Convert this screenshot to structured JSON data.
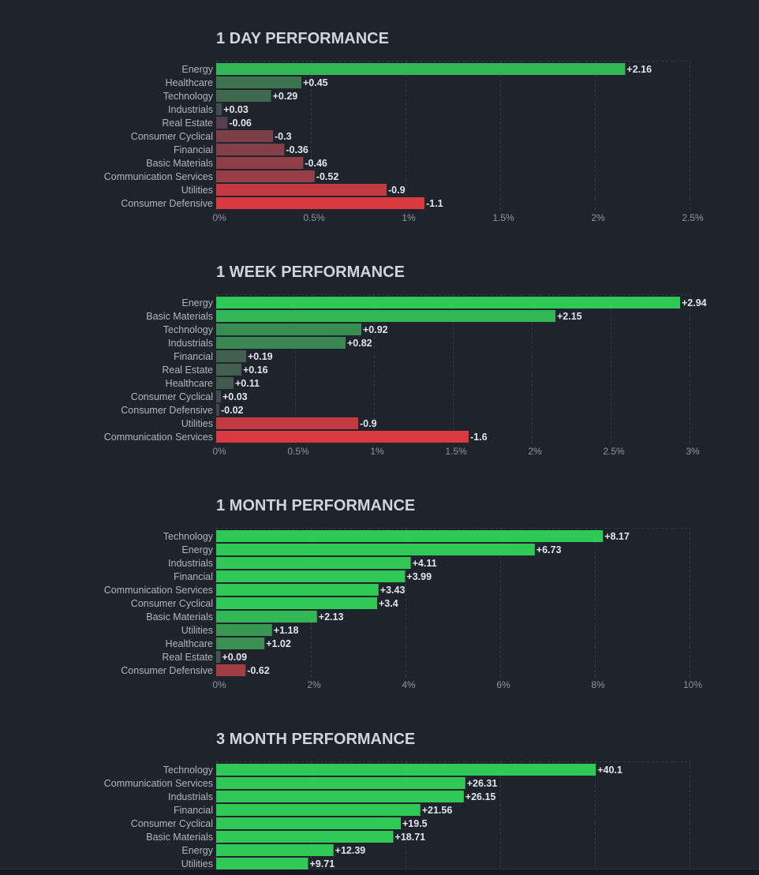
{
  "chart_data": [
    {
      "type": "bar",
      "title": "1 DAY PERFORMANCE",
      "categories": [
        "Energy",
        "Healthcare",
        "Technology",
        "Industrials",
        "Real Estate",
        "Consumer Cyclical",
        "Financial",
        "Basic Materials",
        "Communication Services",
        "Utilities",
        "Consumer Defensive"
      ],
      "values": [
        2.16,
        0.45,
        0.29,
        0.03,
        -0.06,
        -0.3,
        -0.36,
        -0.46,
        -0.52,
        -0.9,
        -1.1
      ],
      "value_labels": [
        "+2.16",
        "+0.45",
        "+0.29",
        "+0.03",
        "-0.06",
        "-0.3",
        "-0.36",
        "-0.46",
        "-0.52",
        "-0.9",
        "-1.1"
      ],
      "xlim": [
        0,
        2.5
      ],
      "xticks": [
        0,
        0.5,
        1,
        1.5,
        2,
        2.5
      ],
      "xtick_labels": [
        "0%",
        "0.5%",
        "1%",
        "1.5%",
        "2%",
        "2.5%"
      ],
      "bar_length": "absolute value",
      "grid": true
    },
    {
      "type": "bar",
      "title": "1 WEEK PERFORMANCE",
      "categories": [
        "Energy",
        "Basic Materials",
        "Technology",
        "Industrials",
        "Financial",
        "Real Estate",
        "Healthcare",
        "Consumer Cyclical",
        "Consumer Defensive",
        "Utilities",
        "Communication Services"
      ],
      "values": [
        2.94,
        2.15,
        0.92,
        0.82,
        0.19,
        0.16,
        0.11,
        0.03,
        -0.02,
        -0.9,
        -1.6
      ],
      "value_labels": [
        "+2.94",
        "+2.15",
        "+0.92",
        "+0.82",
        "+0.19",
        "+0.16",
        "+0.11",
        "+0.03",
        "-0.02",
        "-0.9",
        "-1.6"
      ],
      "xlim": [
        0,
        3
      ],
      "xticks": [
        0,
        0.5,
        1,
        1.5,
        2,
        2.5,
        3
      ],
      "xtick_labels": [
        "0%",
        "0.5%",
        "1%",
        "1.5%",
        "2%",
        "2.5%",
        "3%"
      ],
      "bar_length": "absolute value",
      "grid": true
    },
    {
      "type": "bar",
      "title": "1 MONTH PERFORMANCE",
      "categories": [
        "Technology",
        "Energy",
        "Industrials",
        "Financial",
        "Communication Services",
        "Consumer Cyclical",
        "Basic Materials",
        "Utilities",
        "Healthcare",
        "Real Estate",
        "Consumer Defensive"
      ],
      "values": [
        8.17,
        6.73,
        4.11,
        3.99,
        3.43,
        3.4,
        2.13,
        1.18,
        1.02,
        0.09,
        -0.62
      ],
      "value_labels": [
        "+8.17",
        "+6.73",
        "+4.11",
        "+3.99",
        "+3.43",
        "+3.4",
        "+2.13",
        "+1.18",
        "+1.02",
        "+0.09",
        "-0.62"
      ],
      "xlim": [
        0,
        10
      ],
      "xticks": [
        0,
        2,
        4,
        6,
        8,
        10
      ],
      "xtick_labels": [
        "0%",
        "2%",
        "4%",
        "6%",
        "8%",
        "10%"
      ],
      "bar_length": "absolute value",
      "grid": true
    },
    {
      "type": "bar",
      "title": "3 MONTH PERFORMANCE",
      "categories": [
        "Technology",
        "Communication Services",
        "Industrials",
        "Financial",
        "Consumer Cyclical",
        "Basic Materials",
        "Energy",
        "Utilities"
      ],
      "values": [
        40.1,
        26.31,
        26.15,
        21.56,
        19.5,
        18.71,
        12.39,
        9.71
      ],
      "value_labels": [
        "+40.1",
        "+26.31",
        "+26.15",
        "+21.56",
        "+19.5",
        "+18.71",
        "+12.39",
        "+9.71"
      ],
      "xlim": [
        0,
        50
      ],
      "xticks": [
        0,
        10,
        20,
        30,
        40,
        50
      ],
      "xtick_labels": [],
      "bar_length": "absolute value",
      "grid": true
    }
  ],
  "colors": {
    "background": "#1f232b",
    "title": "#d1d4dc",
    "label": "#b2b5be",
    "tick": "#8f949e",
    "value_label": "#e3e5ea",
    "grid": "#363a45",
    "positive_strong": "#2fc955",
    "negative_strong": "#d83a3f",
    "neutral": "#46424c"
  }
}
